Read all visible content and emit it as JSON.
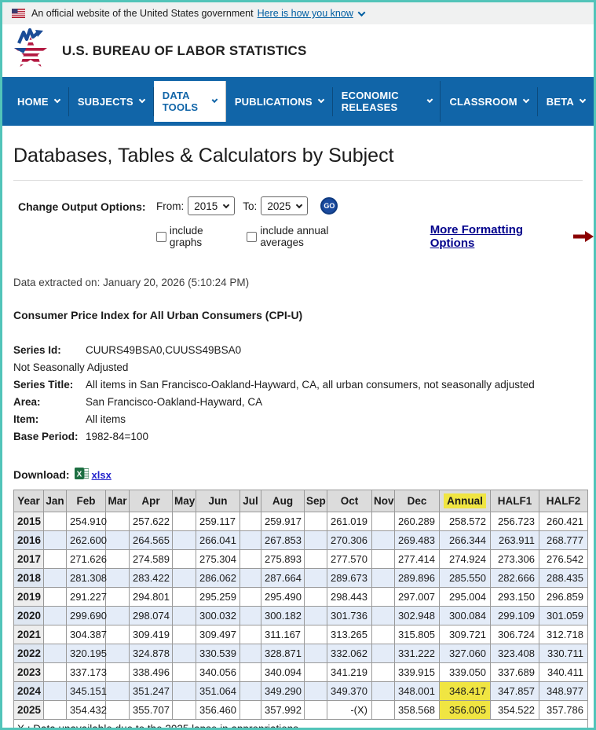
{
  "banner": {
    "text": "An official website of the United States government",
    "link_label": "Here is how you know"
  },
  "header": {
    "agency_name": "U.S. BUREAU OF LABOR STATISTICS"
  },
  "nav": {
    "items": [
      {
        "label": "HOME",
        "active": false
      },
      {
        "label": "SUBJECTS",
        "active": false
      },
      {
        "label": "DATA TOOLS",
        "active": true
      },
      {
        "label": "PUBLICATIONS",
        "active": false
      },
      {
        "label": "ECONOMIC RELEASES",
        "active": false
      },
      {
        "label": "CLASSROOM",
        "active": false
      },
      {
        "label": "BETA",
        "active": false
      }
    ]
  },
  "page": {
    "title": "Databases, Tables & Calculators by Subject"
  },
  "output_options": {
    "label": "Change Output Options:",
    "from_label": "From:",
    "from_value": "2015",
    "to_label": "To:",
    "to_value": "2025",
    "go_label": "GO",
    "checkbox_graphs": "include graphs",
    "checkbox_averages": "include annual averages",
    "more_link": "More Formatting Options"
  },
  "extracted_text": "Data extracted on: January 20, 2026 (5:10:24 PM)",
  "series": {
    "heading": "Consumer Price Index for All Urban Consumers (CPI-U)",
    "id_label": "Series Id:",
    "id_value": "CUURS49BSA0,CUUSS49BSA0",
    "adjustment": "Not Seasonally Adjusted",
    "title_label": "Series Title:",
    "title_value": "All items in San Francisco-Oakland-Hayward, CA, all urban consumers, not seasonally adjusted",
    "area_label": "Area:",
    "area_value": "San Francisco-Oakland-Hayward, CA",
    "item_label": "Item:",
    "item_value": "All items",
    "base_label": "Base Period:",
    "base_value": "1982-84=100"
  },
  "download": {
    "label": "Download:",
    "link_label": "xlsx",
    "excel_icon": "excel-icon"
  },
  "table": {
    "columns": [
      "Year",
      "Jan",
      "Feb",
      "Mar",
      "Apr",
      "May",
      "Jun",
      "Jul",
      "Aug",
      "Sep",
      "Oct",
      "Nov",
      "Dec",
      "Annual",
      "HALF1",
      "HALF2"
    ],
    "highlighted_column": "Annual",
    "rows": [
      {
        "year": "2015",
        "cells": [
          "",
          "254.910",
          "",
          "257.622",
          "",
          "259.117",
          "",
          "259.917",
          "",
          "261.019",
          "",
          "260.289",
          "258.572",
          "256.723",
          "260.421"
        ],
        "highlights": []
      },
      {
        "year": "2016",
        "cells": [
          "",
          "262.600",
          "",
          "264.565",
          "",
          "266.041",
          "",
          "267.853",
          "",
          "270.306",
          "",
          "269.483",
          "266.344",
          "263.911",
          "268.777"
        ],
        "highlights": []
      },
      {
        "year": "2017",
        "cells": [
          "",
          "271.626",
          "",
          "274.589",
          "",
          "275.304",
          "",
          "275.893",
          "",
          "277.570",
          "",
          "277.414",
          "274.924",
          "273.306",
          "276.542"
        ],
        "highlights": []
      },
      {
        "year": "2018",
        "cells": [
          "",
          "281.308",
          "",
          "283.422",
          "",
          "286.062",
          "",
          "287.664",
          "",
          "289.673",
          "",
          "289.896",
          "285.550",
          "282.666",
          "288.435"
        ],
        "highlights": []
      },
      {
        "year": "2019",
        "cells": [
          "",
          "291.227",
          "",
          "294.801",
          "",
          "295.259",
          "",
          "295.490",
          "",
          "298.443",
          "",
          "297.007",
          "295.004",
          "293.150",
          "296.859"
        ],
        "highlights": []
      },
      {
        "year": "2020",
        "cells": [
          "",
          "299.690",
          "",
          "298.074",
          "",
          "300.032",
          "",
          "300.182",
          "",
          "301.736",
          "",
          "302.948",
          "300.084",
          "299.109",
          "301.059"
        ],
        "highlights": []
      },
      {
        "year": "2021",
        "cells": [
          "",
          "304.387",
          "",
          "309.419",
          "",
          "309.497",
          "",
          "311.167",
          "",
          "313.265",
          "",
          "315.805",
          "309.721",
          "306.724",
          "312.718"
        ],
        "highlights": []
      },
      {
        "year": "2022",
        "cells": [
          "",
          "320.195",
          "",
          "324.878",
          "",
          "330.539",
          "",
          "328.871",
          "",
          "332.062",
          "",
          "331.222",
          "327.060",
          "323.408",
          "330.711"
        ],
        "highlights": []
      },
      {
        "year": "2023",
        "cells": [
          "",
          "337.173",
          "",
          "338.496",
          "",
          "340.056",
          "",
          "340.094",
          "",
          "341.219",
          "",
          "339.915",
          "339.050",
          "337.689",
          "340.411"
        ],
        "highlights": []
      },
      {
        "year": "2024",
        "cells": [
          "",
          "345.151",
          "",
          "351.247",
          "",
          "351.064",
          "",
          "349.290",
          "",
          "349.370",
          "",
          "348.001",
          "348.417",
          "347.857",
          "348.977"
        ],
        "highlights": [
          12
        ]
      },
      {
        "year": "2025",
        "cells": [
          "",
          "354.432",
          "",
          "355.707",
          "",
          "356.460",
          "",
          "357.992",
          "",
          "-(X)",
          "",
          "358.568",
          "356.005",
          "354.522",
          "357.786"
        ],
        "highlights": [
          12
        ]
      }
    ],
    "footnote": "X : Data unavailable due to the 2025 lapse in appropriations"
  },
  "colors": {
    "nav_blue": "#1165a8",
    "link_blue": "#005ea2",
    "formatting_link_navy": "#00008b",
    "arrow_dark_red": "#8b0000",
    "highlight_yellow": "#f0e542",
    "row_stripe_blue": "#e4ecf8",
    "page_border_teal": "#52c4b9"
  }
}
